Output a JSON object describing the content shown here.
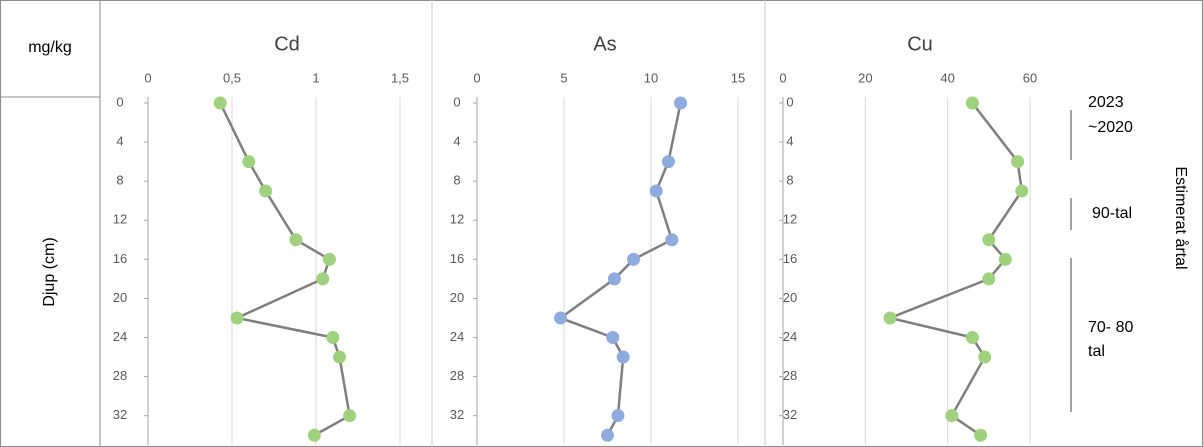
{
  "unit_label": "mg/kg",
  "y_axis_label": "Djup (cm)",
  "side_label": "Estimerat årtal",
  "annotations": [
    "2023",
    "~2020",
    "90-tal",
    "70- 80",
    "tal"
  ],
  "chart_data": [
    {
      "type": "line",
      "title": "Cd",
      "color": "#9fd17f",
      "line_color": "#7f7f7f",
      "depths": [
        0,
        6,
        9,
        14,
        16,
        18,
        22,
        24,
        26,
        32,
        34
      ],
      "values": [
        0.43,
        0.6,
        0.7,
        0.88,
        1.08,
        1.04,
        0.53,
        1.1,
        1.14,
        1.2,
        0.99
      ],
      "xlim": [
        0,
        1.5
      ],
      "xticks": [
        0,
        {
          "value": 0.5,
          "label": "0,5"
        },
        1,
        {
          "value": 1.5,
          "label": "1,5"
        }
      ],
      "ylim": [
        0,
        35
      ],
      "yticks": [
        0,
        4,
        8,
        12,
        16,
        20,
        24,
        28,
        32
      ],
      "grid": true
    },
    {
      "type": "line",
      "title": "As",
      "color": "#8faadc",
      "line_color": "#7f7f7f",
      "depths": [
        0,
        6,
        9,
        14,
        16,
        18,
        22,
        24,
        26,
        32,
        34
      ],
      "values": [
        11.7,
        11,
        10.3,
        11.2,
        9,
        7.9,
        4.8,
        7.8,
        8.4,
        8.1,
        7.5
      ],
      "xlim": [
        0,
        15
      ],
      "xticks": [
        0,
        5,
        10,
        15
      ],
      "ylim": [
        0,
        35
      ],
      "yticks": [
        0,
        4,
        8,
        12,
        16,
        20,
        24,
        28,
        32
      ],
      "grid": true
    },
    {
      "type": "line",
      "title": "Cu",
      "color": "#9fd17f",
      "line_color": "#7f7f7f",
      "depths": [
        0,
        6,
        9,
        14,
        16,
        18,
        22,
        24,
        26,
        32,
        34
      ],
      "values": [
        46,
        57,
        58,
        50,
        54,
        50,
        26,
        46,
        49,
        41,
        48
      ],
      "xlim": [
        0,
        60
      ],
      "xticks": [
        0,
        20,
        40,
        60
      ],
      "ylim": [
        0,
        35
      ],
      "yticks": [
        0,
        4,
        8,
        12,
        16,
        20,
        24,
        28,
        32
      ],
      "grid": true
    }
  ]
}
